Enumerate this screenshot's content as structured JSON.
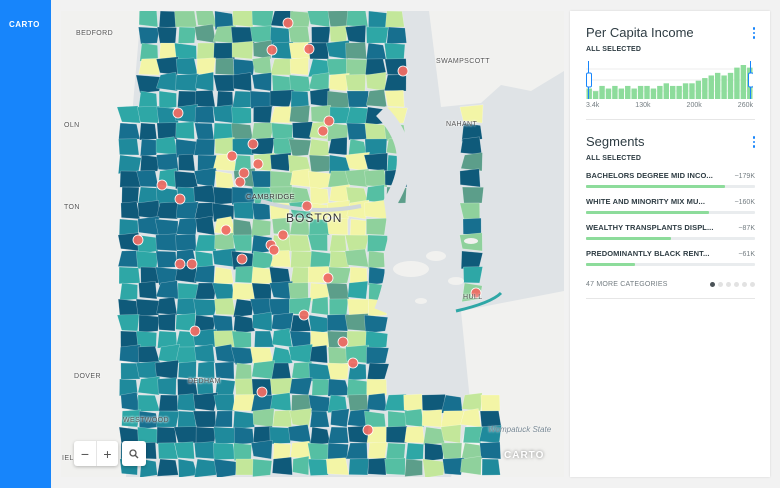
{
  "app": {
    "brand": "CARTO"
  },
  "map": {
    "places": [
      {
        "label": "BEDFORD"
      },
      {
        "label": "SWAMPSCOTT"
      },
      {
        "label": "OLN"
      },
      {
        "label": "NAHANT"
      },
      {
        "label": "TON"
      },
      {
        "label": "CAMBRIDGE"
      },
      {
        "label": "BOSTON"
      },
      {
        "label": "HULL"
      },
      {
        "label": "DOVER"
      },
      {
        "label": "DEDHAM"
      },
      {
        "label": "WESTWOOD"
      },
      {
        "label": "IELD"
      }
    ],
    "water_label": "Wompatuck State",
    "attribution_logo": "CARTO",
    "zoom": {
      "zoom_in": "+",
      "zoom_out": "−"
    },
    "colors": {
      "water": "#dfe3e6",
      "land": "#f4f4f2",
      "point": "#ee6d64"
    }
  },
  "income_widget": {
    "title": "Per Capita Income",
    "status": "ALL SELECTED",
    "axis_labels": [
      "3.4k",
      "130k",
      "200k",
      "260k"
    ],
    "histogram_counts": [
      4,
      3,
      5,
      4,
      5,
      4,
      5,
      4,
      5,
      5,
      4,
      5,
      6,
      5,
      5,
      6,
      6,
      7,
      8,
      9,
      10,
      9,
      10,
      12,
      13,
      12
    ],
    "bar_color": "#8ddc9b",
    "handle_color": "#1785fb"
  },
  "segments_widget": {
    "title": "Segments",
    "status": "ALL SELECTED",
    "items": [
      {
        "name": "BACHELORS DEGREE MID INCO...",
        "value": "~179K",
        "fraction": 0.82
      },
      {
        "name": "WHITE AND MINORITY MIX MU...",
        "value": "~160K",
        "fraction": 0.73
      },
      {
        "name": "WEALTHY TRANSPLANTS DISPL...",
        "value": "~87K",
        "fraction": 0.5
      },
      {
        "name": "PREDOMINANTLY BLACK RENT...",
        "value": "~61K",
        "fraction": 0.29
      }
    ],
    "more_label": "47 MORE CATEGORIES",
    "pages": 6,
    "active_page": 1
  }
}
